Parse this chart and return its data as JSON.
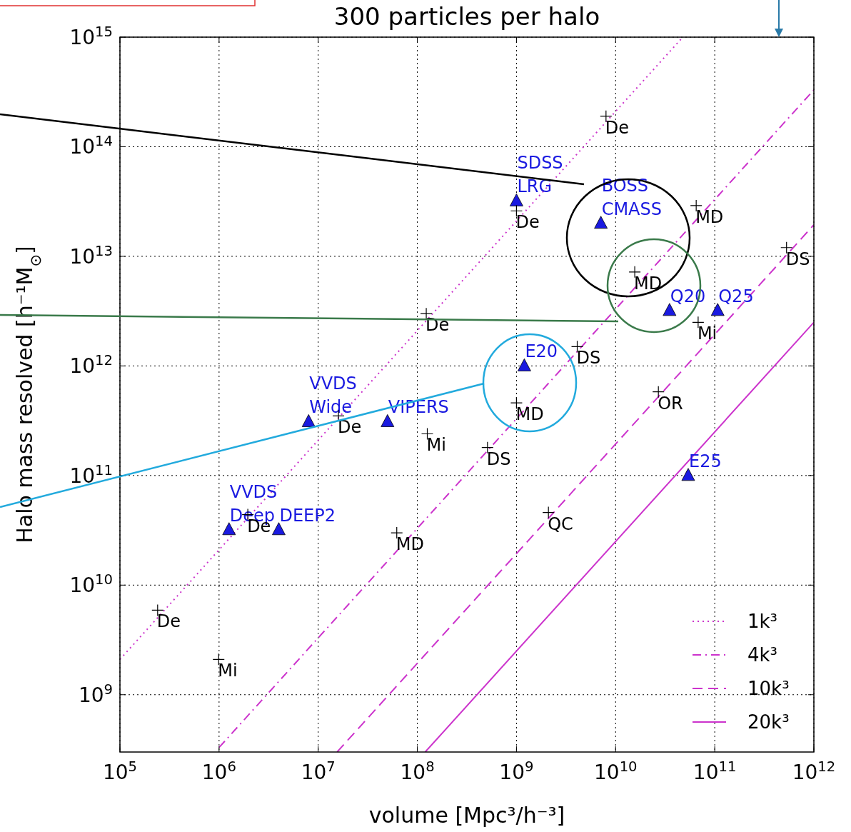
{
  "chart_data": {
    "type": "scatter",
    "title": "300 particles per halo",
    "xlabel": "volume [Mpc³/h⁻³]",
    "ylabel": "Halo mass resolved [h⁻¹M$_{⊙}$]",
    "log": "xy",
    "grid": true,
    "legend": "bottom right",
    "xlim": [
      100000,
      1000000000000
    ],
    "ylim": [
      300000000,
      1000000000000000
    ],
    "xticks": [
      {
        "value": 100000,
        "label": "10$^{5}$"
      },
      {
        "value": 1000000,
        "label": "10$^{6}$"
      },
      {
        "value": 10000000,
        "label": "10$^{7}$"
      },
      {
        "value": 100000000,
        "label": "10$^{8}$"
      },
      {
        "value": 1000000000,
        "label": "10$^{9}$"
      },
      {
        "value": 10000000000,
        "label": "10$^{10}$"
      },
      {
        "value": 100000000000,
        "label": "10$^{11}$"
      },
      {
        "value": 1000000000000,
        "label": "10$^{12}$"
      }
    ],
    "yticks": [
      {
        "value": 1000000000,
        "label": "10$^{9}$"
      },
      {
        "value": 10000000000,
        "label": "10$^{10}$"
      },
      {
        "value": 100000000000,
        "label": "10$^{11}$"
      },
      {
        "value": 1000000000000,
        "label": "10$^{12}$"
      },
      {
        "value": 10000000000000,
        "label": "10$^{13}$"
      },
      {
        "value": 100000000000000,
        "label": "10$^{14}$"
      },
      {
        "value": 1000000000000000,
        "label": "10$^{15}$"
      }
    ],
    "series": [
      {
        "name": "1k³",
        "type": "line",
        "color": "#cc33cc",
        "line_style": "dotted",
        "x": [
          100000,
          47600000000
        ],
        "values": [
          2100000000,
          1000000000000000
        ]
      },
      {
        "name": "4k³",
        "type": "line",
        "color": "#cc33cc",
        "line_style": "dashdot",
        "x": [
          1000000,
          1000000000000
        ],
        "values": [
          330000000,
          330000000000000
        ]
      },
      {
        "name": "10k³",
        "type": "line",
        "color": "#cc33cc",
        "line_style": "dashed",
        "x": [
          15500000,
          1000000000000
        ],
        "values": [
          300000000,
          19400000000000
        ]
      },
      {
        "name": "20k³",
        "type": "line",
        "color": "#cc33cc",
        "line_style": "solid",
        "x": [
          120000000,
          1000000000000
        ],
        "values": [
          300000000,
          2500000000000
        ]
      },
      {
        "marker": "triangle",
        "color": "#1a1ae0",
        "x": [
          1000000000,
          7100000000,
          35000000000,
          107000000000,
          1200000000,
          8000000,
          50000000,
          54000000000,
          1260000,
          4000000
        ],
        "values": [
          32000000000000,
          20000000000000,
          3200000000000,
          3200000000000,
          1000000000000,
          310000000000,
          310000000000,
          100000000000,
          32000000000,
          32000000000
        ],
        "value_labels": [
          "SDSS\nLRG",
          "BOSS\nCMASS",
          "Q20",
          "Q25",
          "E20",
          "VVDS\nWide",
          "VIPERS",
          "E25",
          "VVDS\nDeep",
          "DEEP2"
        ]
      },
      {
        "marker": "cross",
        "color": "#000000",
        "x": [
          8000000000,
          1000000000,
          65000000000,
          530000000000,
          15600000000,
          68000000000,
          123000000,
          4100000000,
          27000000000,
          1000000000,
          16000000,
          126000000,
          510000000,
          2100000000,
          1950000,
          62000000,
          240000,
          990000
        ],
        "values": [
          190000000000000,
          26000000000000,
          29000000000000,
          12000000000000,
          7200000000000,
          2500000000000,
          3000000000000,
          1500000000000,
          580000000000,
          460000000000,
          350000000000,
          240000000000,
          180000000000,
          46000000000,
          44000000000,
          30000000000,
          5900000000,
          2100000000
        ],
        "value_labels": [
          "De",
          "De",
          "MD",
          "DS",
          "MD",
          "Mi",
          "De",
          "DS",
          "OR",
          "MD",
          "De",
          "Mi",
          "DS",
          "QC",
          "De",
          "MD",
          "De",
          "Mi"
        ]
      }
    ]
  }
}
